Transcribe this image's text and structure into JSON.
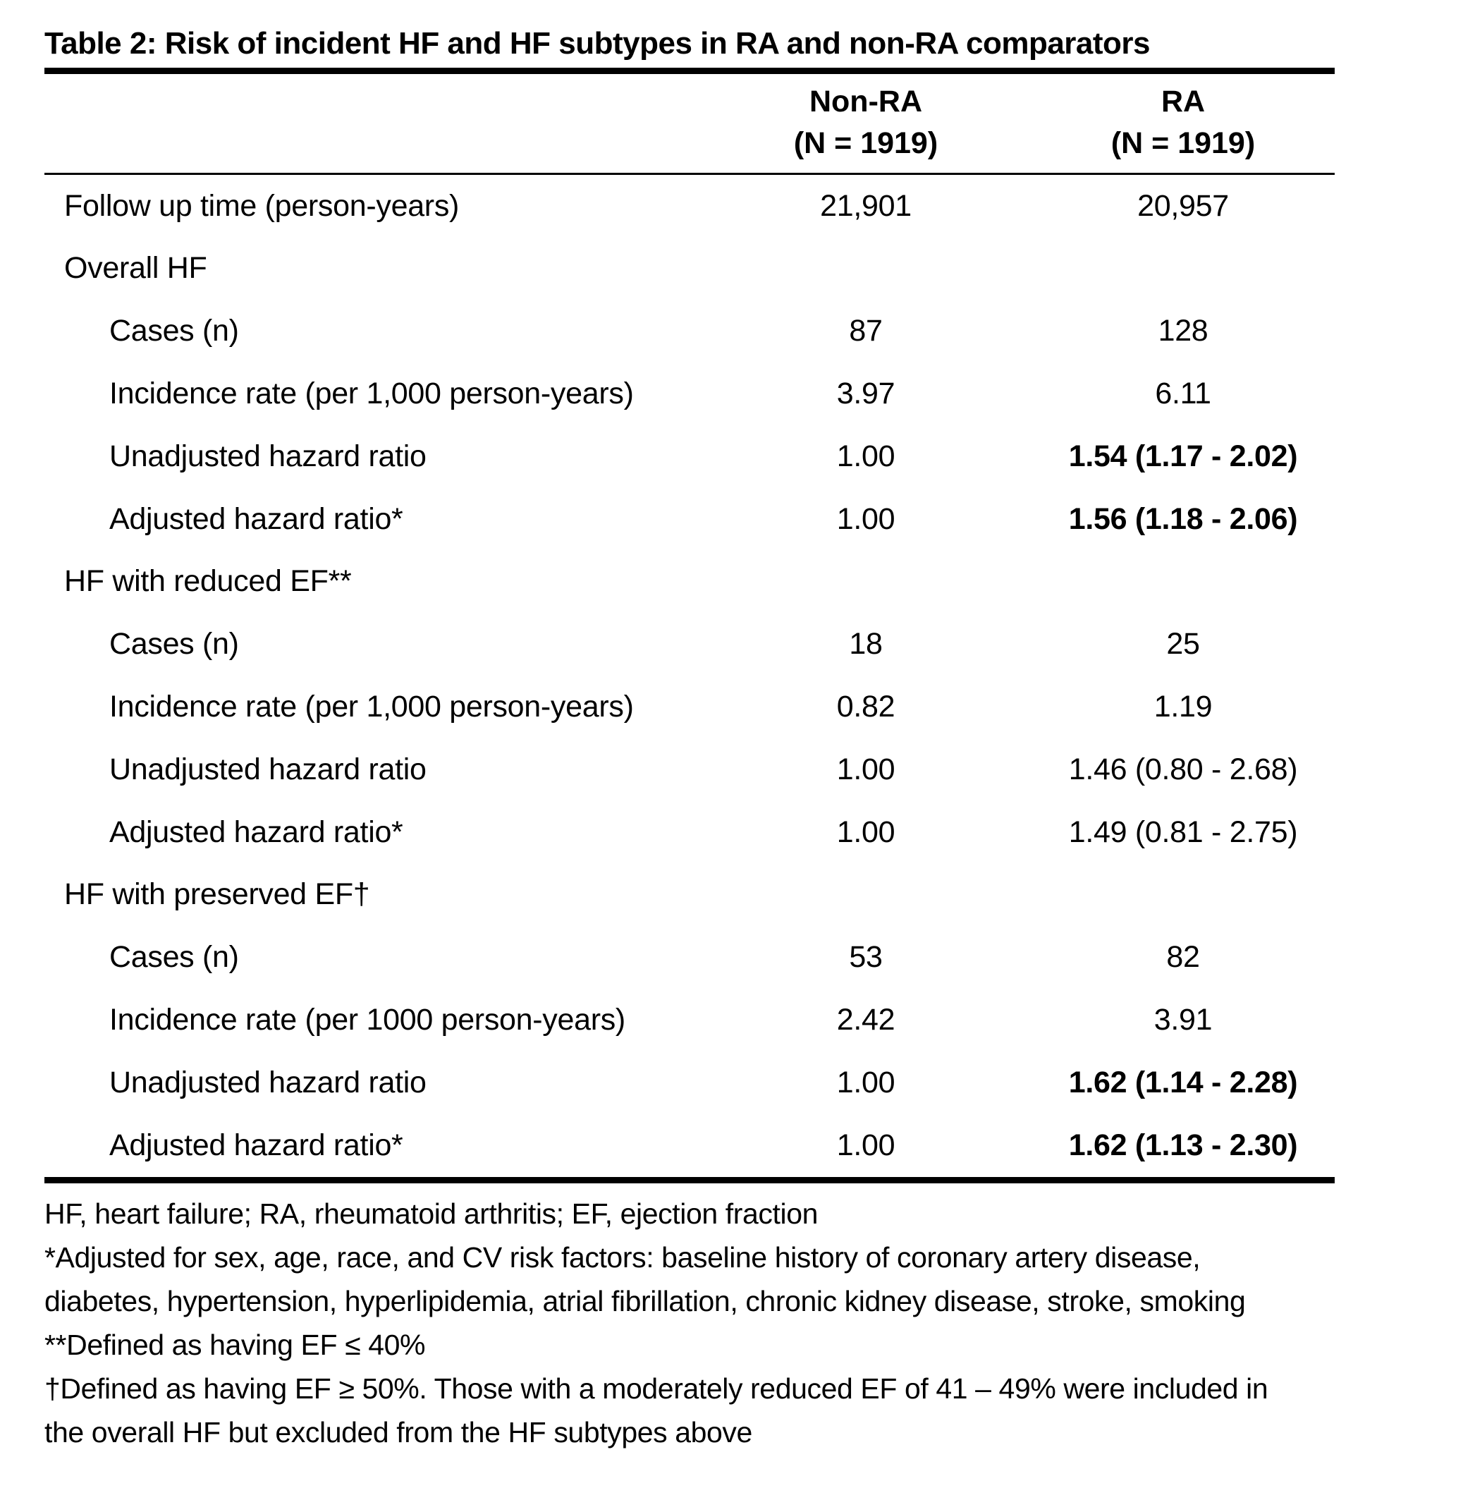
{
  "title": "Table 2: Risk of incident HF and HF subtypes in RA and non-RA comparators",
  "columns": [
    {
      "name": "Non-RA",
      "n": "(N = 1919)"
    },
    {
      "name": "RA",
      "n": "(N = 1919)"
    }
  ],
  "rows": [
    {
      "label": "Follow up time (person-years)",
      "indent": 0,
      "section": false,
      "nonra": "21,901",
      "ra": "20,957"
    },
    {
      "label": "Overall HF",
      "indent": 0,
      "section": true
    },
    {
      "label": "Cases (n)",
      "indent": 1,
      "section": false,
      "nonra": "87",
      "ra": "128"
    },
    {
      "label": "Incidence rate (per 1,000 person-years)",
      "indent": 1,
      "section": false,
      "nonra": "3.97",
      "ra": "6.11"
    },
    {
      "label": "Unadjusted hazard ratio",
      "indent": 1,
      "section": false,
      "nonra": "1.00",
      "ra": "1.54 (1.17 - 2.02)",
      "bold": true
    },
    {
      "label": "Adjusted hazard ratio*",
      "indent": 1,
      "section": false,
      "nonra": "1.00",
      "ra": "1.56 (1.18 - 2.06)",
      "bold": true
    },
    {
      "label": "HF with reduced EF**",
      "indent": 0,
      "section": true
    },
    {
      "label": "Cases (n)",
      "indent": 1,
      "section": false,
      "nonra": "18",
      "ra": "25"
    },
    {
      "label": "Incidence rate (per 1,000 person-years)",
      "indent": 1,
      "section": false,
      "nonra": "0.82",
      "ra": "1.19"
    },
    {
      "label": "Unadjusted hazard ratio",
      "indent": 1,
      "section": false,
      "nonra": "1.00",
      "ra": "1.46 (0.80 - 2.68)",
      "bold": false
    },
    {
      "label": "Adjusted hazard ratio*",
      "indent": 1,
      "section": false,
      "nonra": "1.00",
      "ra": "1.49 (0.81 - 2.75)",
      "bold": false
    },
    {
      "label": "HF with preserved EF†",
      "indent": 0,
      "section": true
    },
    {
      "label": "Cases (n)",
      "indent": 1,
      "section": false,
      "nonra": "53",
      "ra": "82"
    },
    {
      "label": "Incidence rate (per 1000 person-years)",
      "indent": 1,
      "section": false,
      "nonra": "2.42",
      "ra": "3.91"
    },
    {
      "label": "Unadjusted hazard ratio",
      "indent": 1,
      "section": false,
      "nonra": "1.00",
      "ra": "1.62 (1.14 - 2.28)",
      "bold": true
    },
    {
      "label": "Adjusted hazard ratio*",
      "indent": 1,
      "section": false,
      "nonra": "1.00",
      "ra": "1.62 (1.13 - 2.30)",
      "bold": true
    }
  ],
  "footnotes": [
    "HF, heart failure; RA, rheumatoid arthritis; EF, ejection fraction",
    "*Adjusted for sex, age, race, and CV risk factors: baseline history of coronary artery disease,",
    "diabetes, hypertension, hyperlipidemia, atrial fibrillation, chronic kidney disease, stroke, smoking",
    "**Defined as having EF ≤ 40%",
    "†Defined as having EF ≥ 50%. Those with a moderately reduced EF of 41 – 49% were included in",
    "the overall HF but excluded from the HF subtypes above"
  ]
}
